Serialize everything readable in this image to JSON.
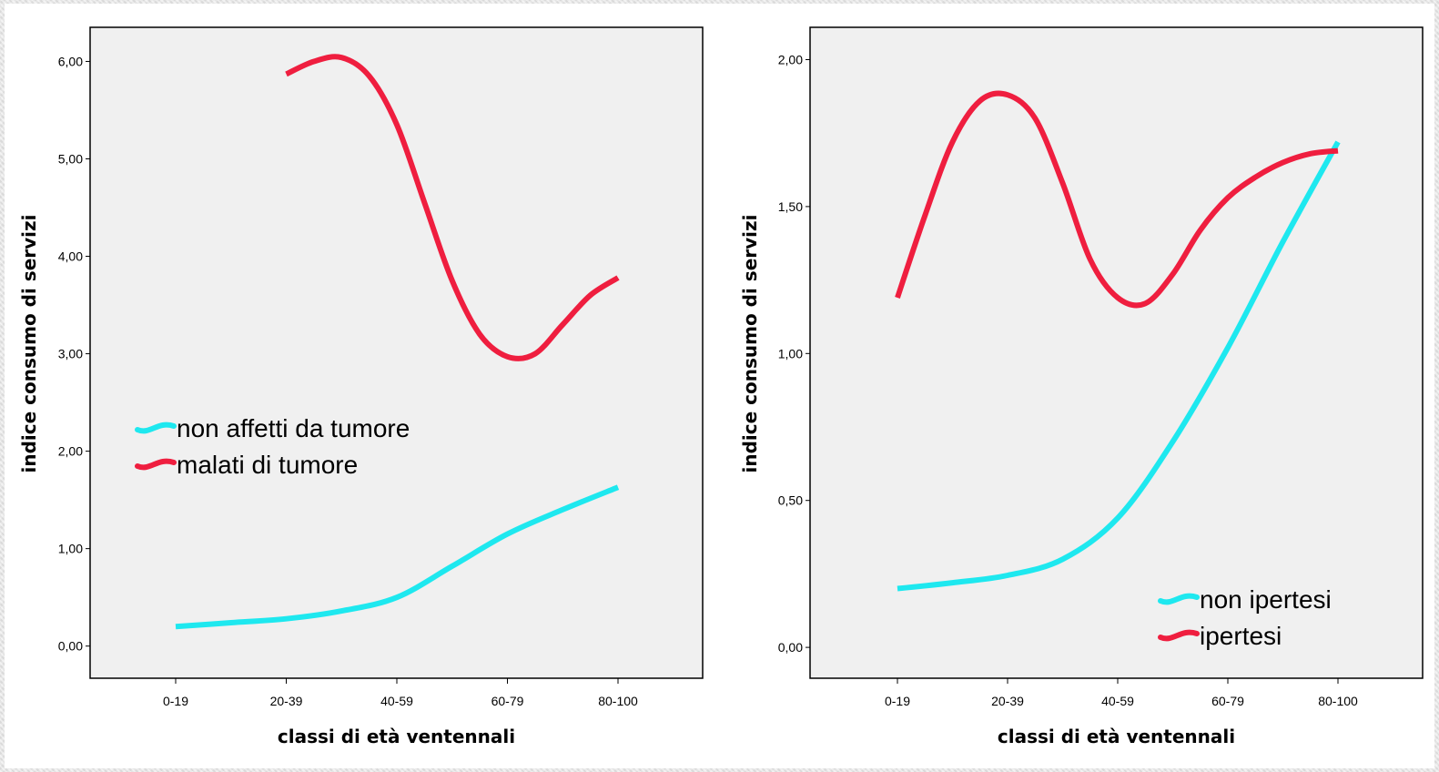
{
  "chart_data": [
    {
      "type": "line",
      "xlabel": "classi di età ventennali",
      "ylabel": "indice consumo di servizi",
      "categories": [
        "0-19",
        "20-39",
        "40-59",
        "60-79",
        "80-100"
      ],
      "ylim": [
        -0.33,
        6.35
      ],
      "yticks": [
        "0,00",
        "1,00",
        "2,00",
        "3,00",
        "4,00",
        "5,00",
        "6,00"
      ],
      "ytick_values": [
        0,
        1,
        2,
        3,
        4,
        5,
        6
      ],
      "legend_position": "middle-left",
      "grid": false,
      "series": [
        {
          "name": "non affetti da tumore",
          "color": "#1ee8ef",
          "points": [
            [
              0,
              0.2
            ],
            [
              0.5,
              0.24
            ],
            [
              1,
              0.28
            ],
            [
              1.5,
              0.36
            ],
            [
              2,
              0.5
            ],
            [
              2.5,
              0.82
            ],
            [
              3,
              1.15
            ],
            [
              3.5,
              1.4
            ],
            [
              4,
              1.63
            ]
          ]
        },
        {
          "name": "malati di tumore",
          "color": "#ef1e3f",
          "points": [
            [
              1,
              5.87
            ],
            [
              1.25,
              6.0
            ],
            [
              1.5,
              6.04
            ],
            [
              1.75,
              5.85
            ],
            [
              2,
              5.35
            ],
            [
              2.25,
              4.55
            ],
            [
              2.5,
              3.75
            ],
            [
              2.75,
              3.2
            ],
            [
              3,
              2.97
            ],
            [
              3.25,
              3.0
            ],
            [
              3.5,
              3.3
            ],
            [
              3.75,
              3.6
            ],
            [
              4,
              3.78
            ]
          ]
        }
      ]
    },
    {
      "type": "line",
      "xlabel": "classi di età ventennali",
      "ylabel": "indice consumo di servizi",
      "categories": [
        "0-19",
        "20-39",
        "40-59",
        "60-79",
        "80-100"
      ],
      "ylim": [
        -0.105,
        2.11
      ],
      "yticks": [
        "0,00",
        "0,50",
        "1,00",
        "1,50",
        "2,00"
      ],
      "ytick_values": [
        0,
        0.5,
        1,
        1.5,
        2
      ],
      "legend_position": "bottom-right",
      "grid": false,
      "series": [
        {
          "name": "non ipertesi",
          "color": "#1ee8ef",
          "points": [
            [
              0,
              0.2
            ],
            [
              0.5,
              0.22
            ],
            [
              1,
              0.245
            ],
            [
              1.5,
              0.3
            ],
            [
              2,
              0.44
            ],
            [
              2.5,
              0.7
            ],
            [
              3,
              1.02
            ],
            [
              3.5,
              1.38
            ],
            [
              4,
              1.72
            ]
          ]
        },
        {
          "name": "ipertesi",
          "color": "#ef1e3f",
          "points": [
            [
              0,
              1.19
            ],
            [
              0.25,
              1.47
            ],
            [
              0.5,
              1.72
            ],
            [
              0.75,
              1.86
            ],
            [
              1,
              1.88
            ],
            [
              1.25,
              1.8
            ],
            [
              1.5,
              1.58
            ],
            [
              1.75,
              1.32
            ],
            [
              2,
              1.19
            ],
            [
              2.25,
              1.17
            ],
            [
              2.5,
              1.27
            ],
            [
              2.75,
              1.42
            ],
            [
              3,
              1.53
            ],
            [
              3.25,
              1.6
            ],
            [
              3.5,
              1.65
            ],
            [
              3.75,
              1.68
            ],
            [
              4,
              1.69
            ]
          ]
        }
      ]
    }
  ]
}
